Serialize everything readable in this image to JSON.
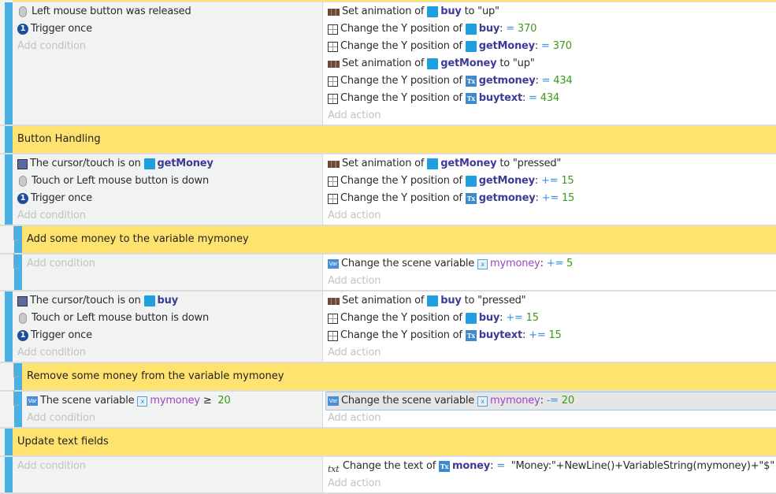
{
  "add_condition": "Add condition",
  "add_action": "Add action",
  "colors": {
    "event_bar": "#4ab0e4",
    "comment_bg": "#ffe36e",
    "object": "#3c3c96",
    "operator": "#3d8fe0",
    "number": "#3a9a1a",
    "variable": "#9b45c4"
  },
  "events": [
    {
      "kind": "event",
      "level": 0,
      "conditions": [
        [
          {
            "i": "mouse-icon"
          },
          {
            "t": "Left mouse button was released"
          }
        ],
        [
          {
            "i": "trigger-once-icon"
          },
          {
            "t": "Trigger once"
          }
        ]
      ],
      "actions": [
        [
          {
            "i": "animation-icon"
          },
          {
            "t": "Set animation of "
          },
          {
            "i": "sprite-icon"
          },
          {
            "o": "buy"
          },
          {
            "t": " to \"up\""
          }
        ],
        [
          {
            "i": "position-icon"
          },
          {
            "t": "Change the Y position of "
          },
          {
            "i": "sprite-icon"
          },
          {
            "o": "buy"
          },
          {
            "t": ": "
          },
          {
            "p": "="
          },
          {
            "n": " 370"
          }
        ],
        [
          {
            "i": "position-icon"
          },
          {
            "t": "Change the Y position of "
          },
          {
            "i": "sprite-icon"
          },
          {
            "o": "getMoney"
          },
          {
            "t": ": "
          },
          {
            "p": "="
          },
          {
            "n": " 370"
          }
        ],
        [
          {
            "i": "animation-icon"
          },
          {
            "t": "Set animation of "
          },
          {
            "i": "sprite-icon"
          },
          {
            "o": "getMoney"
          },
          {
            "t": " to \"up\""
          }
        ],
        [
          {
            "i": "position-icon"
          },
          {
            "t": "Change the Y position of "
          },
          {
            "i": "text-object-icon"
          },
          {
            "o": "getmoney"
          },
          {
            "t": ": "
          },
          {
            "p": "="
          },
          {
            "n": " 434"
          }
        ],
        [
          {
            "i": "position-icon"
          },
          {
            "t": "Change the Y position of "
          },
          {
            "i": "text-object-icon"
          },
          {
            "o": "buytext"
          },
          {
            "t": ": "
          },
          {
            "p": "="
          },
          {
            "n": " 434"
          }
        ]
      ]
    },
    {
      "kind": "comment",
      "level": 0,
      "text": "Button Handling"
    },
    {
      "kind": "event",
      "level": 0,
      "conditions": [
        [
          {
            "i": "cursor-icon"
          },
          {
            "t": "The cursor/touch is on "
          },
          {
            "i": "sprite-icon"
          },
          {
            "o": "getMoney"
          }
        ],
        [
          {
            "i": "mouse-icon"
          },
          {
            "t": "Touch or Left mouse button is down"
          }
        ],
        [
          {
            "i": "trigger-once-icon"
          },
          {
            "t": "Trigger once"
          }
        ]
      ],
      "actions": [
        [
          {
            "i": "animation-icon"
          },
          {
            "t": "Set animation of "
          },
          {
            "i": "sprite-icon"
          },
          {
            "o": "getMoney"
          },
          {
            "t": " to \"pressed\""
          }
        ],
        [
          {
            "i": "position-icon"
          },
          {
            "t": "Change the Y position of "
          },
          {
            "i": "sprite-icon"
          },
          {
            "o": "getMoney"
          },
          {
            "t": ": "
          },
          {
            "p": "+="
          },
          {
            "n": " 15"
          }
        ],
        [
          {
            "i": "position-icon"
          },
          {
            "t": "Change the Y position of "
          },
          {
            "i": "text-object-icon"
          },
          {
            "o": "getmoney"
          },
          {
            "t": ": "
          },
          {
            "p": "+="
          },
          {
            "n": " 15"
          }
        ]
      ]
    },
    {
      "kind": "comment",
      "level": 1,
      "text": "Add some money to the variable mymoney"
    },
    {
      "kind": "event",
      "level": 1,
      "conditions": [],
      "actions": [
        [
          {
            "i": "variable-icon"
          },
          {
            "t": "Change the scene variable "
          },
          {
            "i": "variable-ref-icon"
          },
          {
            "v": "mymoney"
          },
          {
            "t": ": "
          },
          {
            "p": "+="
          },
          {
            "n": " 5"
          }
        ]
      ]
    },
    {
      "kind": "event",
      "level": 0,
      "conditions": [
        [
          {
            "i": "cursor-icon"
          },
          {
            "t": "The cursor/touch is on "
          },
          {
            "i": "sprite-icon"
          },
          {
            "o": "buy"
          }
        ],
        [
          {
            "i": "mouse-icon"
          },
          {
            "t": "Touch or Left mouse button is down"
          }
        ],
        [
          {
            "i": "trigger-once-icon"
          },
          {
            "t": "Trigger once"
          }
        ]
      ],
      "actions": [
        [
          {
            "i": "animation-icon"
          },
          {
            "t": "Set animation of "
          },
          {
            "i": "sprite-icon"
          },
          {
            "o": "buy"
          },
          {
            "t": " to \"pressed\""
          }
        ],
        [
          {
            "i": "position-icon"
          },
          {
            "t": "Change the Y position of "
          },
          {
            "i": "sprite-icon"
          },
          {
            "o": "buy"
          },
          {
            "t": ": "
          },
          {
            "p": "+="
          },
          {
            "n": " 15"
          }
        ],
        [
          {
            "i": "position-icon"
          },
          {
            "t": "Change the Y position of "
          },
          {
            "i": "text-object-icon"
          },
          {
            "o": "buytext"
          },
          {
            "t": ": "
          },
          {
            "p": "+="
          },
          {
            "n": " 15"
          }
        ]
      ]
    },
    {
      "kind": "comment",
      "level": 1,
      "text": "Remove some money from the variable mymoney"
    },
    {
      "kind": "event",
      "level": 1,
      "conditions": [
        [
          {
            "i": "variable-icon"
          },
          {
            "t": "The scene variable "
          },
          {
            "i": "variable-ref-icon"
          },
          {
            "v": "mymoney"
          },
          {
            "t": " ≥ "
          },
          {
            "n": " 20"
          }
        ]
      ],
      "actions": [
        [
          {
            "i": "variable-icon"
          },
          {
            "t": "Change the scene variable "
          },
          {
            "i": "variable-ref-icon"
          },
          {
            "v": "mymoney"
          },
          {
            "t": ": "
          },
          {
            "p": "-="
          },
          {
            "n": " 20"
          }
        ]
      ],
      "selected_action": 0
    },
    {
      "kind": "comment",
      "level": 0,
      "text": "Update text fields"
    },
    {
      "kind": "event",
      "level": 0,
      "conditions": [],
      "actions": [
        [
          {
            "i": "txt-icon"
          },
          {
            "t": "Change the text of "
          },
          {
            "i": "text-object-icon"
          },
          {
            "o": "money"
          },
          {
            "t": ": "
          },
          {
            "p": "="
          },
          {
            "t": "  \"Money:\"+NewLine()+VariableString(mymoney)+\"$\""
          }
        ]
      ]
    }
  ]
}
